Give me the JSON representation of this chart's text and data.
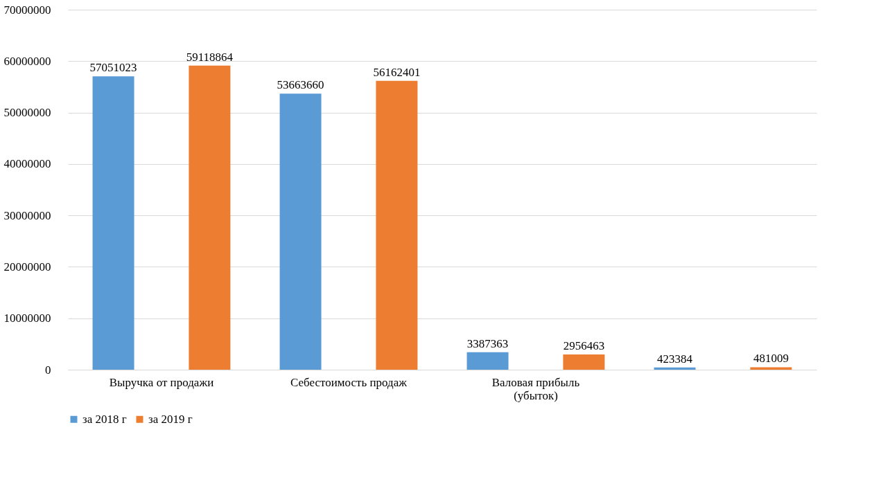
{
  "chart_data": {
    "type": "bar",
    "categories": [
      "Выручка от продажи",
      "Себестоимость продаж",
      "Валовая прибыль (убыток)",
      null
    ],
    "series": [
      {
        "name": "за 2018 г",
        "color": "#5b9bd5",
        "values": [
          57051023,
          53663660,
          3387363,
          423384
        ]
      },
      {
        "name": "за 2019 г",
        "color": "#ed7d31",
        "values": [
          59118864,
          56162401,
          2956463,
          481009
        ]
      }
    ],
    "ylim": [
      0,
      70000000
    ],
    "yticks": [
      0,
      10000000,
      20000000,
      30000000,
      40000000,
      50000000,
      60000000,
      70000000
    ],
    "grid": "y",
    "legend": "bottom",
    "data_labels": true
  }
}
